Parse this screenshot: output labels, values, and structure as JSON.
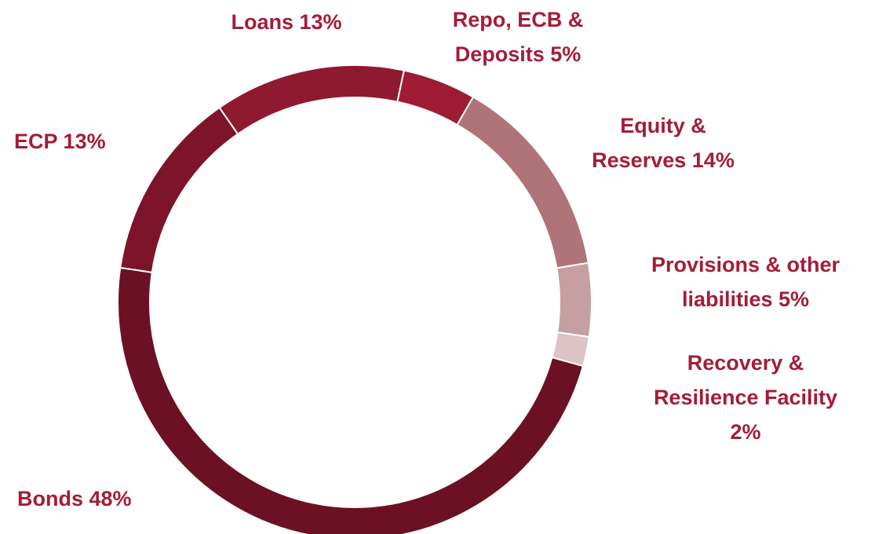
{
  "chart_data": {
    "type": "donut",
    "categories": [
      "Repo, ECB & Deposits",
      "Equity & Reserves",
      "Provisions & other liabilities",
      "Recovery & Resilience Facility",
      "Bonds",
      "ECP",
      "Loans"
    ],
    "values": [
      5,
      14,
      5,
      2,
      48,
      13,
      13
    ],
    "value_labels": [
      "5%",
      "14%",
      "5%",
      "2%",
      "48%",
      "13%",
      "13%"
    ],
    "colors": [
      "#9e1b34",
      "#b07478",
      "#c69fa3",
      "#ddc3c6",
      "#6b1123",
      "#7e1429",
      "#8f1a2f"
    ]
  }
}
